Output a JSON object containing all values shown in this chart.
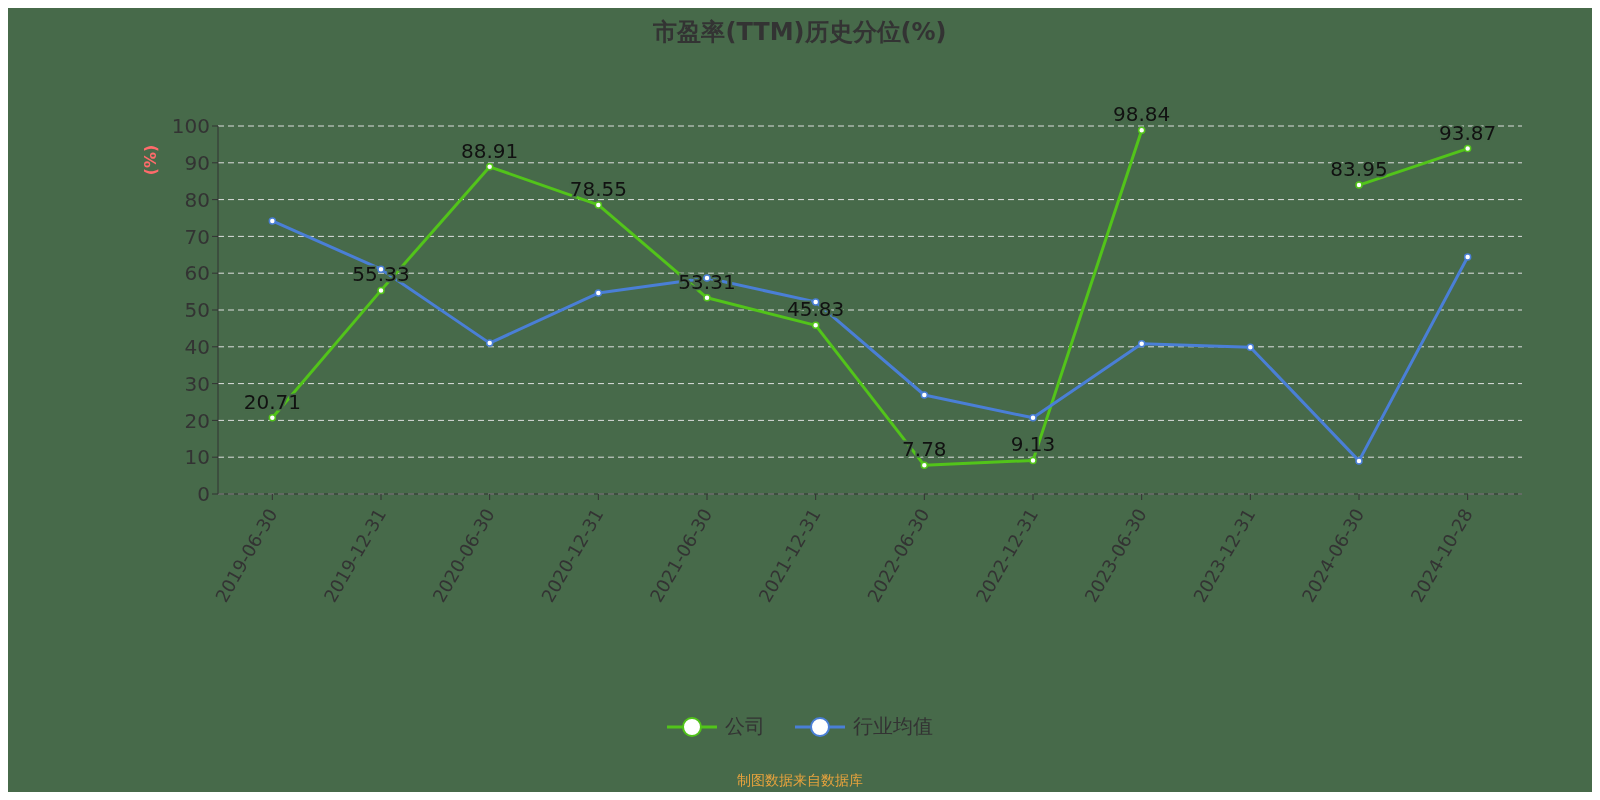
{
  "chart_data": {
    "type": "line",
    "title": "市盈率(TTM)历史分位(%)",
    "ylabel": "(%)",
    "categories": [
      "2019-06-30",
      "2019-12-31",
      "2020-06-30",
      "2020-12-31",
      "2021-06-30",
      "2021-12-31",
      "2022-06-30",
      "2022-12-31",
      "2023-06-30",
      "2023-12-31",
      "2024-06-30",
      "2024-10-28"
    ],
    "series": [
      {
        "name": "公司",
        "color": "#52c41a",
        "values": [
          20.71,
          55.33,
          88.91,
          78.55,
          53.31,
          45.83,
          7.78,
          9.13,
          98.84,
          null,
          83.95,
          93.87
        ],
        "value_labels": [
          "20.71",
          "55.33",
          "88.91",
          "78.55",
          "53.31",
          "45.83",
          "7.78",
          "9.13",
          "98.84",
          null,
          "83.95",
          "93.87"
        ]
      },
      {
        "name": "行业均值",
        "color": "#4a7fd6",
        "values": [
          74.2,
          61.1,
          41.0,
          54.6,
          58.7,
          52.2,
          26.9,
          20.7,
          40.8,
          39.9,
          9.0,
          64.4
        ]
      }
    ],
    "ylim": [
      0,
      100
    ],
    "yticks": [
      0,
      10,
      20,
      30,
      40,
      50,
      60,
      70,
      80,
      90,
      100
    ],
    "grid": "y",
    "legend": "bottom",
    "marker": "circle",
    "line_style": "solid",
    "annotations": [
      "制图数据来自数据库"
    ]
  }
}
